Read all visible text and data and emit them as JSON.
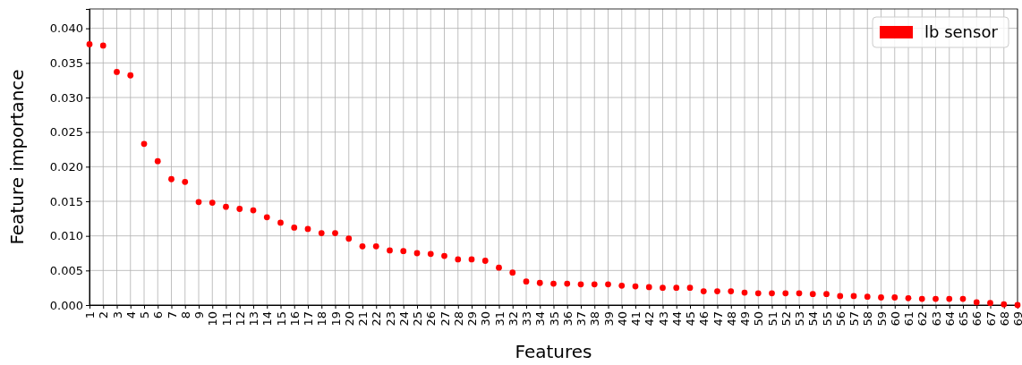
{
  "chart_data": {
    "type": "scatter",
    "xlabel": "Features",
    "ylabel": "Feature importance",
    "x": [
      1,
      2,
      3,
      4,
      5,
      6,
      7,
      8,
      9,
      10,
      11,
      12,
      13,
      14,
      15,
      16,
      17,
      18,
      19,
      20,
      21,
      22,
      23,
      24,
      25,
      26,
      27,
      28,
      29,
      30,
      31,
      32,
      33,
      34,
      35,
      36,
      37,
      38,
      39,
      40,
      41,
      42,
      43,
      44,
      45,
      46,
      47,
      48,
      49,
      50,
      51,
      52,
      53,
      54,
      55,
      56,
      57,
      58,
      59,
      60,
      61,
      62,
      63,
      64,
      65,
      66,
      67,
      68,
      69
    ],
    "series": [
      {
        "name": "lb sensor",
        "color": "#ff0000",
        "values": [
          0.0377,
          0.0375,
          0.0337,
          0.0332,
          0.0233,
          0.0208,
          0.0182,
          0.0178,
          0.0149,
          0.0148,
          0.0142,
          0.0139,
          0.0137,
          0.0127,
          0.0119,
          0.0112,
          0.011,
          0.0104,
          0.0104,
          0.0096,
          0.0085,
          0.0085,
          0.0079,
          0.0078,
          0.0075,
          0.0074,
          0.0071,
          0.0066,
          0.0066,
          0.0064,
          0.0054,
          0.0047,
          0.0034,
          0.0032,
          0.0031,
          0.0031,
          0.003,
          0.003,
          0.003,
          0.0028,
          0.0027,
          0.0026,
          0.0025,
          0.0025,
          0.0025,
          0.002,
          0.002,
          0.002,
          0.0018,
          0.0017,
          0.0017,
          0.0017,
          0.0017,
          0.0016,
          0.0016,
          0.0013,
          0.0013,
          0.0012,
          0.0011,
          0.0011,
          0.001,
          0.0009,
          0.0009,
          0.0009,
          0.0009,
          0.0004,
          0.0003,
          0.0001,
          0.0
        ]
      }
    ],
    "xlim": [
      1,
      69
    ],
    "xticks": [
      1,
      2,
      3,
      4,
      5,
      6,
      7,
      8,
      9,
      10,
      11,
      12,
      13,
      14,
      15,
      16,
      17,
      18,
      19,
      20,
      21,
      22,
      23,
      24,
      25,
      26,
      27,
      28,
      29,
      30,
      31,
      32,
      33,
      34,
      35,
      36,
      37,
      38,
      39,
      40,
      41,
      42,
      43,
      44,
      45,
      46,
      47,
      48,
      49,
      50,
      51,
      52,
      53,
      54,
      55,
      56,
      57,
      58,
      59,
      60,
      61,
      62,
      63,
      64,
      65,
      66,
      67,
      68,
      69
    ],
    "ylim": [
      0,
      0.0428
    ],
    "yticks": [
      {
        "value": 0,
        "label": "0.000"
      },
      {
        "value": 0.005,
        "label": "0.005"
      },
      {
        "value": 0.01,
        "label": "0.010"
      },
      {
        "value": 0.015,
        "label": "0.015"
      },
      {
        "value": 0.02,
        "label": "0.020"
      },
      {
        "value": 0.025,
        "label": "0.025"
      },
      {
        "value": 0.03,
        "label": "0.030"
      },
      {
        "value": 0.035,
        "label": "0.035"
      },
      {
        "value": 0.04,
        "label": "0.040"
      }
    ],
    "grid": true,
    "legend": "top right",
    "marker": "circle"
  }
}
